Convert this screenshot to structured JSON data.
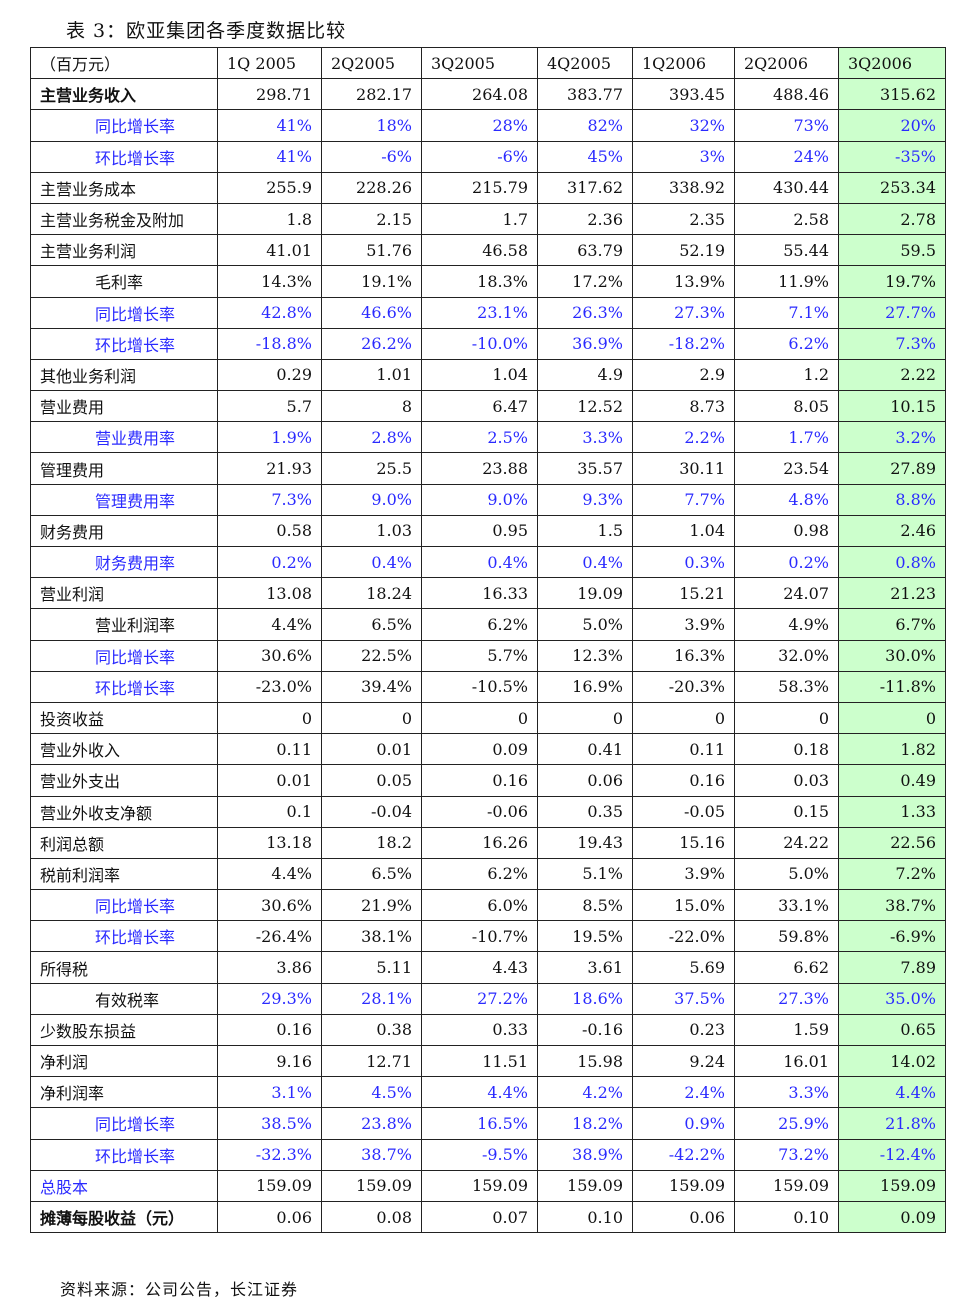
{
  "title": "表 3：欧亚集团各季度数据比较",
  "source": "资料来源：公司公告，长江证券",
  "highlight_color": "#ccffcc",
  "accent_blue": "#2a2aff",
  "header": [
    "（百万元）",
    "1Q 2005",
    "2Q2005",
    "3Q2005",
    "4Q2005",
    "1Q2006",
    "2Q2006",
    "3Q2006"
  ],
  "rows": [
    {
      "label": "主营业务收入",
      "indent": false,
      "label_blue": false,
      "value_blue": false,
      "bold": true,
      "values": [
        "298.71",
        "282.17",
        "264.08",
        "383.77",
        "393.45",
        "488.46",
        "315.62"
      ]
    },
    {
      "label": "同比增长率",
      "indent": true,
      "label_blue": true,
      "value_blue": true,
      "values": [
        "41%",
        "18%",
        "28%",
        "82%",
        "32%",
        "73%",
        "20%"
      ]
    },
    {
      "label": "环比增长率",
      "indent": true,
      "label_blue": true,
      "value_blue": true,
      "values": [
        "41%",
        "-6%",
        "-6%",
        "45%",
        "3%",
        "24%",
        "-35%"
      ]
    },
    {
      "label": "主营业务成本",
      "indent": false,
      "label_blue": false,
      "value_blue": false,
      "values": [
        "255.9",
        "228.26",
        "215.79",
        "317.62",
        "338.92",
        "430.44",
        "253.34"
      ]
    },
    {
      "label": "主营业务税金及附加",
      "indent": false,
      "label_blue": false,
      "value_blue": false,
      "values": [
        "1.8",
        "2.15",
        "1.7",
        "2.36",
        "2.35",
        "2.58",
        "2.78"
      ]
    },
    {
      "label": "主营业务利润",
      "indent": false,
      "label_blue": false,
      "value_blue": false,
      "values": [
        "41.01",
        "51.76",
        "46.58",
        "63.79",
        "52.19",
        "55.44",
        "59.5"
      ]
    },
    {
      "label": "毛利率",
      "indent": true,
      "label_blue": false,
      "value_blue": false,
      "values": [
        "14.3%",
        "19.1%",
        "18.3%",
        "17.2%",
        "13.9%",
        "11.9%",
        "19.7%"
      ]
    },
    {
      "label": "同比增长率",
      "indent": true,
      "label_blue": true,
      "value_blue": true,
      "values": [
        "42.8%",
        "46.6%",
        "23.1%",
        "26.3%",
        "27.3%",
        "7.1%",
        "27.7%"
      ]
    },
    {
      "label": "环比增长率",
      "indent": true,
      "label_blue": true,
      "value_blue": true,
      "values": [
        "-18.8%",
        "26.2%",
        "-10.0%",
        "36.9%",
        "-18.2%",
        "6.2%",
        "7.3%"
      ]
    },
    {
      "label": "其他业务利润",
      "indent": false,
      "label_blue": false,
      "value_blue": false,
      "values": [
        "0.29",
        "1.01",
        "1.04",
        "4.9",
        "2.9",
        "1.2",
        "2.22"
      ]
    },
    {
      "label": "营业费用",
      "indent": false,
      "label_blue": false,
      "value_blue": false,
      "values": [
        "5.7",
        "8",
        "6.47",
        "12.52",
        "8.73",
        "8.05",
        "10.15"
      ]
    },
    {
      "label": "营业费用率",
      "indent": true,
      "label_blue": true,
      "value_blue": true,
      "values": [
        "1.9%",
        "2.8%",
        "2.5%",
        "3.3%",
        "2.2%",
        "1.7%",
        "3.2%"
      ]
    },
    {
      "label": "管理费用",
      "indent": false,
      "label_blue": false,
      "value_blue": false,
      "values": [
        "21.93",
        "25.5",
        "23.88",
        "35.57",
        "30.11",
        "23.54",
        "27.89"
      ]
    },
    {
      "label": "管理费用率",
      "indent": true,
      "label_blue": true,
      "value_blue": true,
      "values": [
        "7.3%",
        "9.0%",
        "9.0%",
        "9.3%",
        "7.7%",
        "4.8%",
        "8.8%"
      ]
    },
    {
      "label": "财务费用",
      "indent": false,
      "label_blue": false,
      "value_blue": false,
      "values": [
        "0.58",
        "1.03",
        "0.95",
        "1.5",
        "1.04",
        "0.98",
        "2.46"
      ]
    },
    {
      "label": "财务费用率",
      "indent": true,
      "label_blue": true,
      "value_blue": true,
      "values": [
        "0.2%",
        "0.4%",
        "0.4%",
        "0.4%",
        "0.3%",
        "0.2%",
        "0.8%"
      ]
    },
    {
      "label": "营业利润",
      "indent": false,
      "label_blue": false,
      "value_blue": false,
      "values": [
        "13.08",
        "18.24",
        "16.33",
        "19.09",
        "15.21",
        "24.07",
        "21.23"
      ]
    },
    {
      "label": "营业利润率",
      "indent": true,
      "label_blue": false,
      "value_blue": false,
      "values": [
        "4.4%",
        "6.5%",
        "6.2%",
        "5.0%",
        "3.9%",
        "4.9%",
        "6.7%"
      ]
    },
    {
      "label": "同比增长率",
      "indent": true,
      "label_blue": true,
      "value_blue": false,
      "values": [
        "30.6%",
        "22.5%",
        "5.7%",
        "12.3%",
        "16.3%",
        "32.0%",
        "30.0%"
      ]
    },
    {
      "label": "环比增长率",
      "indent": true,
      "label_blue": true,
      "value_blue": false,
      "values": [
        "-23.0%",
        "39.4%",
        "-10.5%",
        "16.9%",
        "-20.3%",
        "58.3%",
        "-11.8%"
      ]
    },
    {
      "label": "投资收益",
      "indent": false,
      "label_blue": false,
      "value_blue": false,
      "values": [
        "0",
        "0",
        "0",
        "0",
        "0",
        "0",
        "0"
      ]
    },
    {
      "label": "营业外收入",
      "indent": false,
      "label_blue": false,
      "value_blue": false,
      "values": [
        "0.11",
        "0.01",
        "0.09",
        "0.41",
        "0.11",
        "0.18",
        "1.82"
      ]
    },
    {
      "label": "营业外支出",
      "indent": false,
      "label_blue": false,
      "value_blue": false,
      "values": [
        "0.01",
        "0.05",
        "0.16",
        "0.06",
        "0.16",
        "0.03",
        "0.49"
      ]
    },
    {
      "label": "营业外收支净额",
      "indent": false,
      "label_blue": false,
      "value_blue": false,
      "values": [
        "0.1",
        "-0.04",
        "-0.06",
        "0.35",
        "-0.05",
        "0.15",
        "1.33"
      ]
    },
    {
      "label": "利润总额",
      "indent": false,
      "label_blue": false,
      "value_blue": false,
      "values": [
        "13.18",
        "18.2",
        "16.26",
        "19.43",
        "15.16",
        "24.22",
        "22.56"
      ]
    },
    {
      "label": "税前利润率",
      "indent": false,
      "label_blue": false,
      "value_blue": false,
      "values": [
        "4.4%",
        "6.5%",
        "6.2%",
        "5.1%",
        "3.9%",
        "5.0%",
        "7.2%"
      ]
    },
    {
      "label": "同比增长率",
      "indent": true,
      "label_blue": true,
      "value_blue": false,
      "values": [
        "30.6%",
        "21.9%",
        "6.0%",
        "8.5%",
        "15.0%",
        "33.1%",
        "38.7%"
      ]
    },
    {
      "label": "环比增长率",
      "indent": true,
      "label_blue": true,
      "value_blue": false,
      "values": [
        "-26.4%",
        "38.1%",
        "-10.7%",
        "19.5%",
        "-22.0%",
        "59.8%",
        "-6.9%"
      ]
    },
    {
      "label": "所得税",
      "indent": false,
      "label_blue": false,
      "value_blue": false,
      "values": [
        "3.86",
        "5.11",
        "4.43",
        "3.61",
        "5.69",
        "6.62",
        "7.89"
      ]
    },
    {
      "label": "有效税率",
      "indent": true,
      "label_blue": false,
      "value_blue": true,
      "values": [
        "29.3%",
        "28.1%",
        "27.2%",
        "18.6%",
        "37.5%",
        "27.3%",
        "35.0%"
      ]
    },
    {
      "label": "少数股东损益",
      "indent": false,
      "label_blue": false,
      "value_blue": false,
      "values": [
        "0.16",
        "0.38",
        "0.33",
        "-0.16",
        "0.23",
        "1.59",
        "0.65"
      ]
    },
    {
      "label": "净利润",
      "indent": false,
      "label_blue": false,
      "value_blue": false,
      "values": [
        "9.16",
        "12.71",
        "11.51",
        "15.98",
        "9.24",
        "16.01",
        "14.02"
      ]
    },
    {
      "label": "净利润率",
      "indent": false,
      "label_blue": false,
      "value_blue": true,
      "values": [
        "3.1%",
        "4.5%",
        "4.4%",
        "4.2%",
        "2.4%",
        "3.3%",
        "4.4%"
      ]
    },
    {
      "label": "同比增长率",
      "indent": true,
      "label_blue": true,
      "value_blue": true,
      "values": [
        "38.5%",
        "23.8%",
        "16.5%",
        "18.2%",
        "0.9%",
        "25.9%",
        "21.8%"
      ]
    },
    {
      "label": "环比增长率",
      "indent": true,
      "label_blue": true,
      "value_blue": true,
      "values": [
        "-32.3%",
        "38.7%",
        "-9.5%",
        "38.9%",
        "-42.2%",
        "73.2%",
        "-12.4%"
      ]
    },
    {
      "label": "总股本",
      "indent": false,
      "label_blue": true,
      "value_blue": false,
      "values": [
        "159.09",
        "159.09",
        "159.09",
        "159.09",
        "159.09",
        "159.09",
        "159.09"
      ]
    },
    {
      "label": "摊薄每股收益（元）",
      "indent": false,
      "label_blue": false,
      "value_blue": false,
      "bold": true,
      "values": [
        "0.06",
        "0.08",
        "0.07",
        "0.10",
        "0.06",
        "0.10",
        "0.09"
      ]
    }
  ]
}
